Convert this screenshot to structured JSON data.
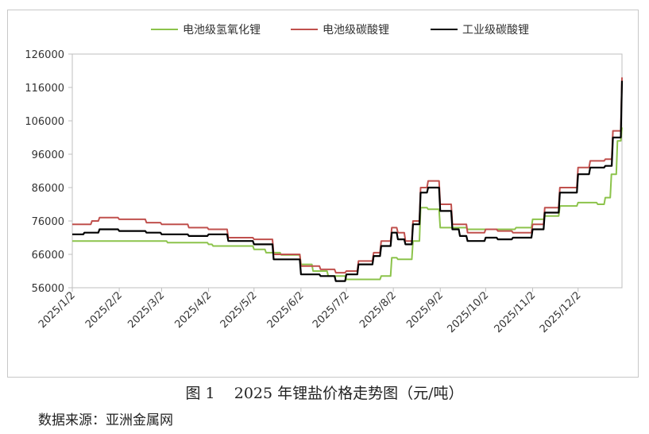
{
  "figure": {
    "caption": "图 1    2025 年锂盐价格走势图（元/吨）",
    "source": "数据来源：亚洲金属网"
  },
  "colors": {
    "battery_lioh": "#8cc34b",
    "battery_li2co3": "#c0504d",
    "industrial_li2co3": "#000000",
    "axis": "#bfbfbf"
  },
  "chart_data": {
    "type": "line",
    "title": "",
    "xlabel": "",
    "ylabel": "",
    "ylim": [
      56000,
      126000
    ],
    "y_ticks": [
      "56000",
      "66000",
      "76000",
      "86000",
      "96000",
      "106000",
      "116000",
      "126000"
    ],
    "x_ticks": [
      "2025/1/2",
      "2025/2/2",
      "2025/3/2",
      "2025/4/2",
      "2025/5/2",
      "2025/6/2",
      "2025/7/2",
      "2025/8/2",
      "2025/9/2",
      "2025/10/2",
      "2025/11/2",
      "2025/12/2"
    ],
    "x_range": [
      "2025/1/2",
      "2025/12/31"
    ],
    "grid": false,
    "legend_position": "top",
    "series": [
      {
        "name": "电池级氢氧化锂",
        "color": "#8cc34b",
        "x": [
          "2025/1/2",
          "2025/1/15",
          "2025/2/2",
          "2025/2/20",
          "2025/3/2",
          "2025/3/6",
          "2025/3/20",
          "2025/4/2",
          "2025/4/5",
          "2025/4/20",
          "2025/5/2",
          "2025/5/10",
          "2025/5/20",
          "2025/6/2",
          "2025/6/10",
          "2025/6/20",
          "2025/7/2",
          "2025/7/15",
          "2025/7/22",
          "2025/7/25",
          "2025/8/1",
          "2025/8/5",
          "2025/8/10",
          "2025/8/15",
          "2025/8/20",
          "2025/8/25",
          "2025/9/2",
          "2025/9/10",
          "2025/9/20",
          "2025/10/2",
          "2025/10/15",
          "2025/10/22",
          "2025/11/2",
          "2025/11/10",
          "2025/11/20",
          "2025/12/2",
          "2025/12/15",
          "2025/12/20",
          "2025/12/24",
          "2025/12/28",
          "2025/12/31"
        ],
        "y": [
          70000,
          70000,
          70000,
          70000,
          70000,
          69500,
          69500,
          69000,
          68500,
          68500,
          67500,
          66500,
          65800,
          63000,
          61000,
          59500,
          58500,
          58500,
          58500,
          59500,
          65000,
          64500,
          64500,
          70000,
          80000,
          79500,
          74000,
          74000,
          73500,
          73500,
          73500,
          74000,
          76500,
          77500,
          80500,
          81500,
          81000,
          83000,
          90000,
          100000,
          104000
        ]
      },
      {
        "name": "电池级碳酸锂",
        "color": "#c0504d",
        "x": [
          "2025/1/2",
          "2025/1/15",
          "2025/1/20",
          "2025/2/2",
          "2025/2/20",
          "2025/3/2",
          "2025/3/20",
          "2025/4/2",
          "2025/4/15",
          "2025/5/2",
          "2025/5/15",
          "2025/6/2",
          "2025/6/15",
          "2025/6/25",
          "2025/7/2",
          "2025/7/10",
          "2025/7/20",
          "2025/7/25",
          "2025/8/1",
          "2025/8/5",
          "2025/8/10",
          "2025/8/15",
          "2025/8/20",
          "2025/8/25",
          "2025/9/2",
          "2025/9/10",
          "2025/9/20",
          "2025/10/2",
          "2025/10/10",
          "2025/10/20",
          "2025/11/2",
          "2025/11/10",
          "2025/11/20",
          "2025/12/2",
          "2025/12/10",
          "2025/12/20",
          "2025/12/25",
          "2025/12/31"
        ],
        "y": [
          75000,
          76000,
          77000,
          76500,
          75500,
          75000,
          74000,
          73500,
          71000,
          70500,
          66000,
          62500,
          61500,
          60500,
          61000,
          64000,
          66500,
          70000,
          74000,
          72500,
          70000,
          76000,
          86000,
          88000,
          81000,
          75000,
          72500,
          73500,
          73000,
          72500,
          75000,
          80000,
          86000,
          92000,
          94000,
          94500,
          103000,
          119000
        ]
      },
      {
        "name": "工业级碳酸锂",
        "color": "#000000",
        "x": [
          "2025/1/2",
          "2025/1/10",
          "2025/1/20",
          "2025/2/2",
          "2025/2/20",
          "2025/3/2",
          "2025/3/20",
          "2025/4/2",
          "2025/4/15",
          "2025/5/2",
          "2025/5/15",
          "2025/6/2",
          "2025/6/15",
          "2025/6/25",
          "2025/7/2",
          "2025/7/10",
          "2025/7/20",
          "2025/7/25",
          "2025/8/1",
          "2025/8/5",
          "2025/8/10",
          "2025/8/15",
          "2025/8/20",
          "2025/8/25",
          "2025/9/2",
          "2025/9/10",
          "2025/9/15",
          "2025/9/20",
          "2025/10/2",
          "2025/10/10",
          "2025/10/20",
          "2025/11/2",
          "2025/11/10",
          "2025/11/20",
          "2025/12/2",
          "2025/12/10",
          "2025/12/20",
          "2025/12/25",
          "2025/12/31"
        ],
        "y": [
          72000,
          72500,
          73500,
          73000,
          72500,
          72000,
          71500,
          72000,
          70000,
          69000,
          64500,
          60000,
          59500,
          58000,
          60000,
          63000,
          65500,
          68500,
          72500,
          70500,
          69000,
          75000,
          84500,
          86000,
          79000,
          73500,
          71500,
          70000,
          71000,
          70500,
          71000,
          73500,
          78500,
          84500,
          90000,
          92000,
          92500,
          101000,
          118000
        ]
      }
    ]
  }
}
